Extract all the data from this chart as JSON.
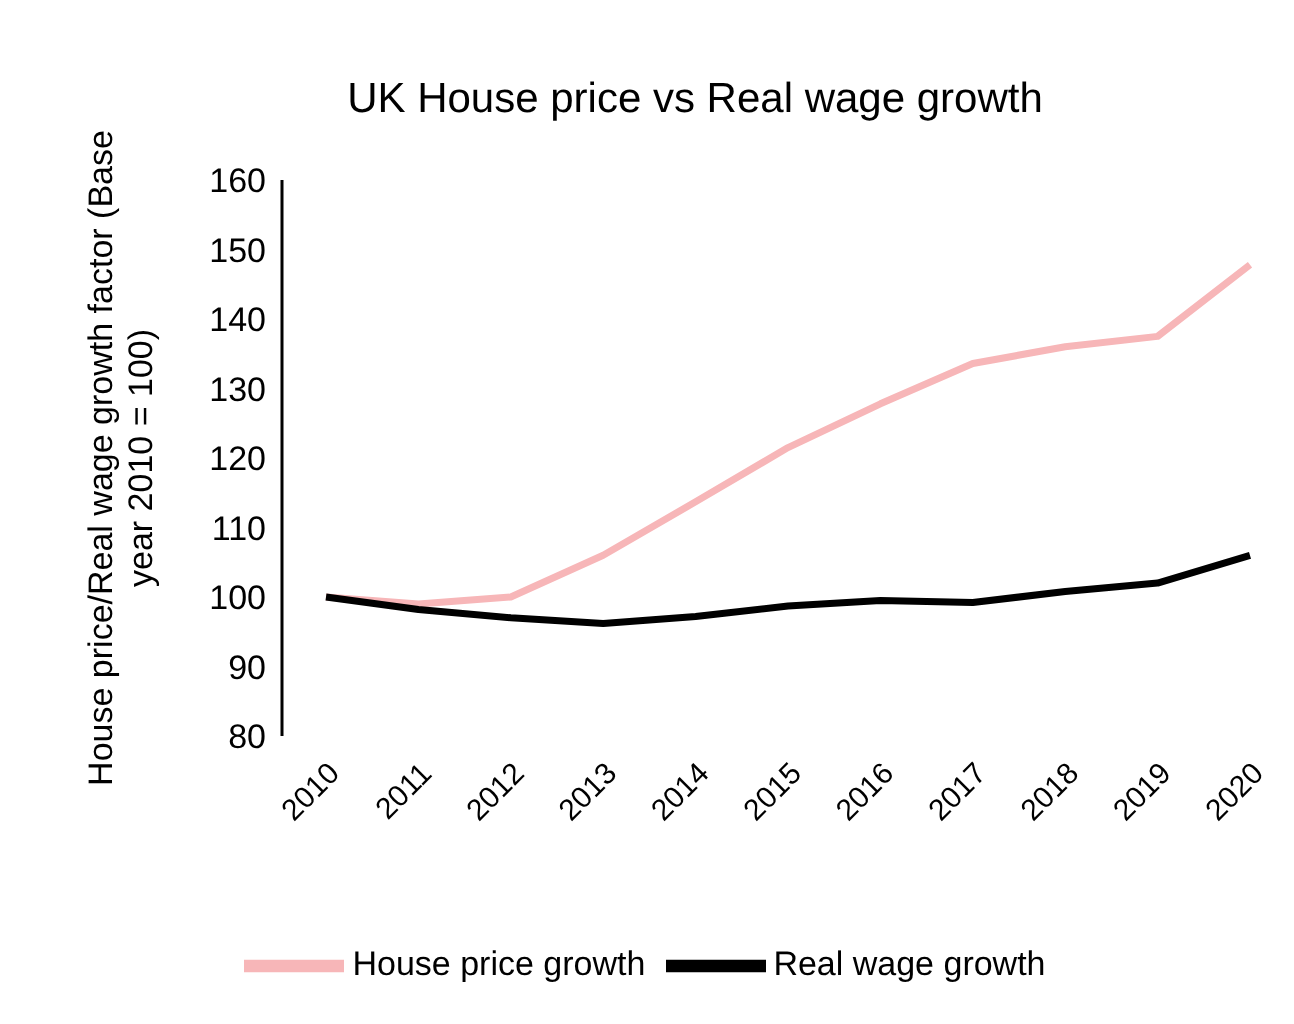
{
  "chart_data": {
    "type": "line",
    "title": "UK House price vs Real wage growth",
    "ylabel": "House price/Real wage growth factor (Base year 2010 = 100)",
    "categories": [
      "2010",
      "2011",
      "2012",
      "2013",
      "2014",
      "2015",
      "2016",
      "2017",
      "2018",
      "2019",
      "2020"
    ],
    "series": [
      {
        "name": "House price growth",
        "color": "#f7b6b8",
        "values": [
          100,
          99,
          100,
          106,
          113.7,
          121.5,
          127.8,
          133.6,
          136,
          137.5,
          147.8
        ]
      },
      {
        "name": "Real wage growth",
        "color": "#000000",
        "values": [
          100,
          98.2,
          97,
          96.2,
          97.2,
          98.7,
          99.5,
          99.2,
          100.8,
          102,
          106
        ]
      }
    ],
    "ylim": [
      80,
      160
    ],
    "yticks": [
      80,
      90,
      100,
      110,
      120,
      130,
      140,
      150,
      160
    ],
    "grid": false,
    "legend": "bottom",
    "marker": "none",
    "line_style": "solid"
  }
}
